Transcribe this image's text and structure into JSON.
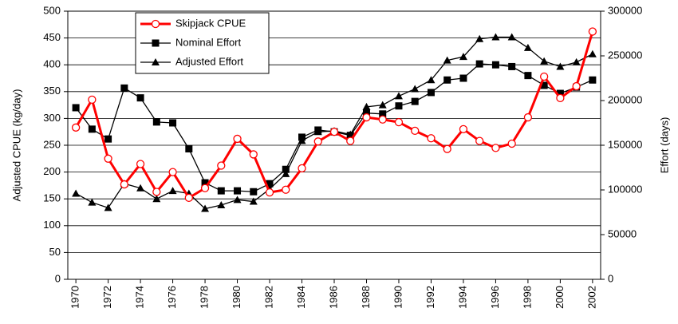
{
  "chart_data": {
    "type": "line",
    "y_label": "Adjusted CPUE (kg/day)",
    "y2_label": "Effort (days)",
    "x": [
      1970,
      1971,
      1972,
      1973,
      1974,
      1975,
      1976,
      1977,
      1978,
      1979,
      1980,
      1981,
      1982,
      1983,
      1984,
      1985,
      1986,
      1987,
      1988,
      1989,
      1990,
      1991,
      1992,
      1993,
      1994,
      1995,
      1996,
      1997,
      1998,
      1999,
      2000,
      2001,
      2002
    ],
    "xlim": [
      1970,
      2002
    ],
    "xticks": [
      1970,
      1972,
      1974,
      1976,
      1978,
      1980,
      1982,
      1984,
      1986,
      1988,
      1990,
      1992,
      1994,
      1996,
      1998,
      2000,
      2002
    ],
    "ylim": [
      0,
      500
    ],
    "yticks": [
      0,
      50,
      100,
      150,
      200,
      250,
      300,
      350,
      400,
      450,
      500
    ],
    "y2lim": [
      0,
      300000
    ],
    "y2ticks": [
      0,
      50000,
      100000,
      150000,
      200000,
      250000,
      300000
    ],
    "grid": true,
    "legend": "top-left",
    "series": [
      {
        "name": "Skipjack CPUE",
        "color": "#ff0000",
        "marker": "circle",
        "values": [
          283,
          335,
          225,
          177,
          215,
          163,
          200,
          152,
          170,
          212,
          262,
          233,
          162,
          167,
          207,
          257,
          275,
          258,
          302,
          298,
          293,
          277,
          263,
          243,
          280,
          258,
          245,
          253,
          302,
          378,
          338,
          360,
          462
        ]
      },
      {
        "name": "Nominal Effort",
        "color": "#000000",
        "marker": "square",
        "axis": "y2",
        "values": [
          192000,
          168000,
          157000,
          214000,
          203000,
          176000,
          175000,
          146000,
          108000,
          99000,
          99000,
          98000,
          107000,
          123000,
          159000,
          167000,
          165000,
          161000,
          186000,
          185000,
          194000,
          199000,
          209000,
          223000,
          225000,
          241000,
          240000,
          238000,
          228000,
          217000,
          208000,
          215000,
          223000
        ]
      },
      {
        "name": "Adjusted Effort",
        "color": "#000000",
        "marker": "triangle",
        "axis": "y2",
        "values": [
          96000,
          86000,
          80000,
          107000,
          102000,
          90000,
          99000,
          96000,
          79000,
          83000,
          89000,
          87000,
          101000,
          118000,
          155000,
          165000,
          166000,
          162000,
          193000,
          195000,
          205000,
          213000,
          223000,
          245000,
          249000,
          269000,
          271000,
          271000,
          259000,
          244000,
          238000,
          243000,
          252000
        ]
      }
    ]
  }
}
